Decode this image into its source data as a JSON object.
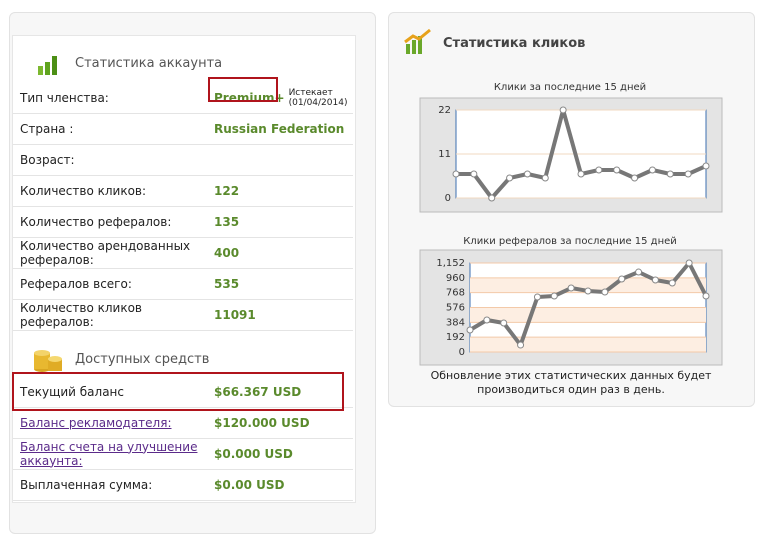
{
  "account": {
    "title": "Статистика аккаунта",
    "rows": [
      {
        "label": "Тип членства:",
        "value": "Premium+",
        "note": "Истекает (01/04/2014)"
      },
      {
        "label": "Страна :",
        "value": "Russian Federation"
      },
      {
        "label": "Возраст:"
      },
      {
        "label": "Количество кликов:",
        "value": "122"
      },
      {
        "label": "Количество рефералов:",
        "value": "135"
      },
      {
        "label": "Количество арендованных рефералов:",
        "value": "400"
      },
      {
        "label": "Рефералов всего:",
        "value": "535"
      },
      {
        "label": "Количество кликов рефералов:",
        "value": "11091"
      }
    ]
  },
  "funds": {
    "title": "Доступных средств",
    "rows": [
      {
        "label": "Текущий баланс",
        "value": "$66.367 USD"
      },
      {
        "label": "Баланс рекламодателя:",
        "value": "$120.000 USD"
      },
      {
        "label": "Баланс счета на улучшение аккаунта:",
        "value": "$0.000 USD"
      },
      {
        "label": "Выплаченная сумма:",
        "value": "$0.00 USD"
      }
    ]
  },
  "clicks_panel": {
    "title": "Статистика кликов",
    "note": "Обновление этих статистических данных будет производиться один раз в день."
  },
  "chart_data": [
    {
      "type": "line",
      "title": "Клики за последние 15 дней",
      "categories": [
        null,
        null,
        null,
        null,
        null,
        null,
        null,
        null,
        null,
        null,
        null,
        null,
        null,
        null,
        null
      ],
      "values": [
        6,
        6,
        0,
        5,
        6,
        5,
        22,
        6,
        7,
        7,
        5,
        7,
        6,
        6,
        8
      ],
      "ylim": [
        0,
        22
      ],
      "yticks": [
        0,
        11,
        22
      ],
      "color": "#777777",
      "bands": false
    },
    {
      "type": "line",
      "title": "Клики рефералов за последние 15 дней",
      "categories": [
        null,
        null,
        null,
        null,
        null,
        null,
        null,
        null,
        null,
        null,
        null,
        null,
        null,
        null,
        null
      ],
      "values": [
        285,
        414,
        375,
        90,
        712,
        725,
        828,
        790,
        777,
        945,
        1035,
        932,
        893,
        1152,
        725
      ],
      "ylim": [
        0,
        1152
      ],
      "yticks": [
        0,
        192,
        384,
        576,
        768,
        960,
        {
          "value": 1152,
          "label": "1,152"
        }
      ],
      "color": "#777777",
      "bands": true
    }
  ]
}
